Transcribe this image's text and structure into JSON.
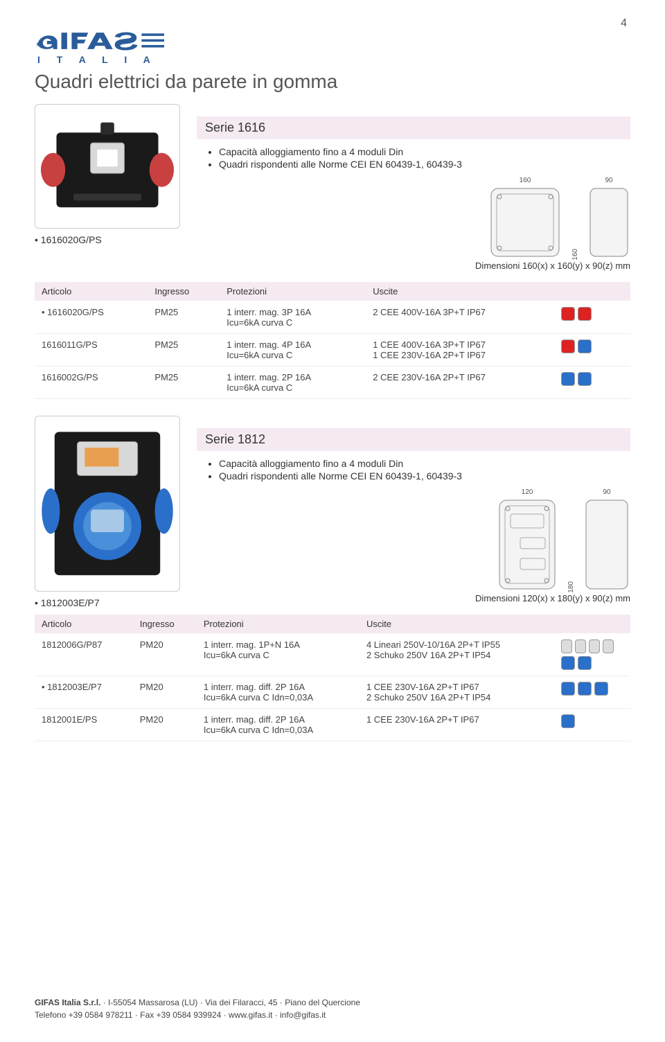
{
  "page_number": "4",
  "logo_main": "GIFAS",
  "logo_sub": "I T A L I A",
  "logo_color": "#2a5c9a",
  "page_title": "Quadri elettrici da parete in gomma",
  "section1": {
    "title": "Serie 1616",
    "bullets": [
      "Capacità alloggiamento fino a 4 moduli Din",
      "Quadri rispondenti alle Norme CEI EN 60439-1, 60439-3"
    ],
    "diagram": {
      "w1": "160",
      "h1": "160",
      "w2": "90"
    },
    "ref": "• 1616020G/PS",
    "dims_caption": "Dimensioni 160(x) x 160(y) x 90(z) mm",
    "table": {
      "columns": [
        "Articolo",
        "Ingresso",
        "Protezioni",
        "Uscite"
      ],
      "rows": [
        {
          "art": "• 1616020G/PS",
          "ing": "PM25",
          "prot": "1 interr. mag. 3P 16A\nIcu=6kA curva C",
          "usc": "2 CEE 400V-16A 3P+T IP67",
          "icons": [
            "red",
            "red"
          ]
        },
        {
          "art": "1616011G/PS",
          "ing": "PM25",
          "prot": "1 interr. mag. 4P 16A\nIcu=6kA curva C",
          "usc": "1 CEE 400V-16A 3P+T IP67\n1 CEE 230V-16A 2P+T IP67",
          "icons": [
            "red",
            "blue"
          ]
        },
        {
          "art": "1616002G/PS",
          "ing": "PM25",
          "prot": "1 interr. mag. 2P 16A\nIcu=6kA curva C",
          "usc": "2 CEE 230V-16A 2P+T IP67",
          "icons": [
            "blue",
            "blue"
          ]
        }
      ]
    }
  },
  "section2": {
    "title": "Serie 1812",
    "bullets": [
      "Capacità alloggiamento fino a 4 moduli Din",
      "Quadri rispondenti alle Norme CEI EN 60439-1, 60439-3"
    ],
    "diagram": {
      "w1": "120",
      "h1": "180",
      "w2": "90"
    },
    "ref": "• 1812003E/P7",
    "dims_caption": "Dimensioni 120(x) x 180(y) x 90(z) mm",
    "table": {
      "columns": [
        "Articolo",
        "Ingresso",
        "Protezioni",
        "Uscite"
      ],
      "rows": [
        {
          "art": "1812006G/P87",
          "ing": "PM20",
          "prot": "1 interr. mag. 1P+N 16A\nIcu=6kA curva C",
          "usc": "4 Lineari 250V-10/16A 2P+T IP55\n2 Schuko 250V 16A 2P+T IP54",
          "icons": [
            "lin",
            "lin",
            "lin",
            "lin",
            "blue",
            "blue"
          ]
        },
        {
          "art": "• 1812003E/P7",
          "ing": "PM20",
          "prot": "1 interr. mag. diff. 2P 16A\nIcu=6kA curva C Idn=0,03A",
          "usc": "1 CEE 230V-16A 2P+T IP67\n2 Schuko 250V 16A 2P+T IP54",
          "icons": [
            "blue",
            "blue",
            "blue"
          ]
        },
        {
          "art": "1812001E/PS",
          "ing": "PM20",
          "prot": "1 interr. mag. diff. 2P 16A\nIcu=6kA curva C Idn=0,03A",
          "usc": "1 CEE 230V-16A 2P+T IP67",
          "icons": [
            "blue"
          ]
        }
      ]
    }
  },
  "footer": {
    "line1_company": "GIFAS Italia S.r.l.",
    "line1_rest": " · I-55054 Massarosa (LU) · Via dei Filaracci, 45 · Piano del Quercione",
    "line2": "Telefono +39 0584 978211 · Fax +39 0584 939924 · www.gifas.it · info@gifas.it"
  },
  "colors": {
    "header_bg": "#f5eaf2",
    "text": "#333333",
    "muted": "#555555"
  }
}
